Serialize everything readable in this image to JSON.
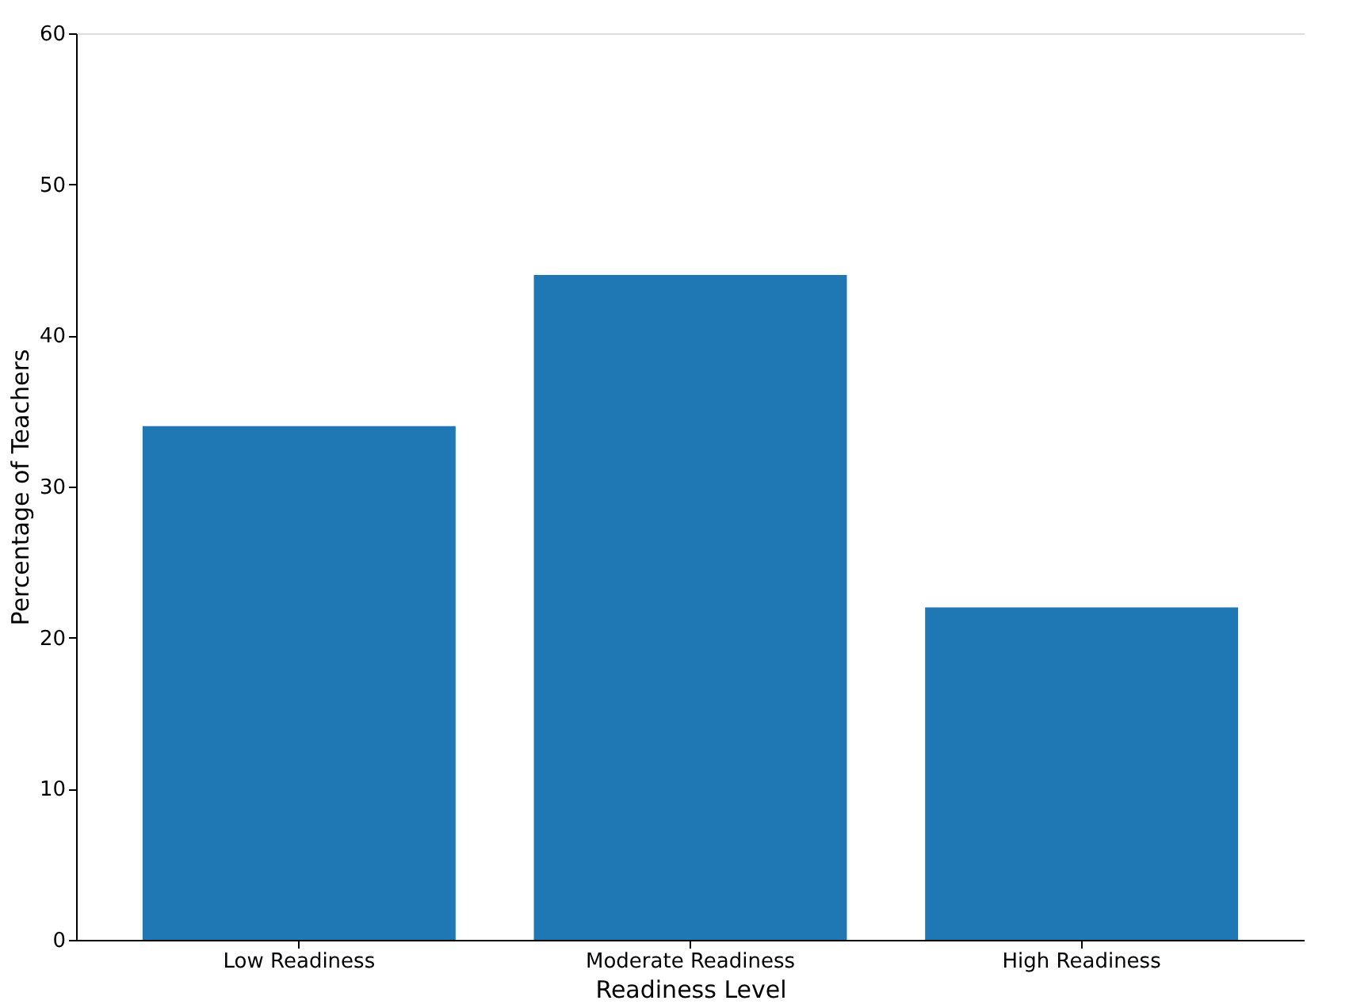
{
  "chart_data": {
    "type": "bar",
    "categories": [
      "Low Readiness",
      "Moderate Readiness",
      "High Readiness"
    ],
    "values": [
      34,
      44,
      22
    ],
    "color": "#1f77b4",
    "xlabel": "Readiness Level",
    "ylabel": "Percentage of Teachers",
    "ylim": [
      0,
      60
    ],
    "yticks": [
      0,
      10,
      20,
      30,
      40,
      50,
      60
    ],
    "grid": false
  }
}
